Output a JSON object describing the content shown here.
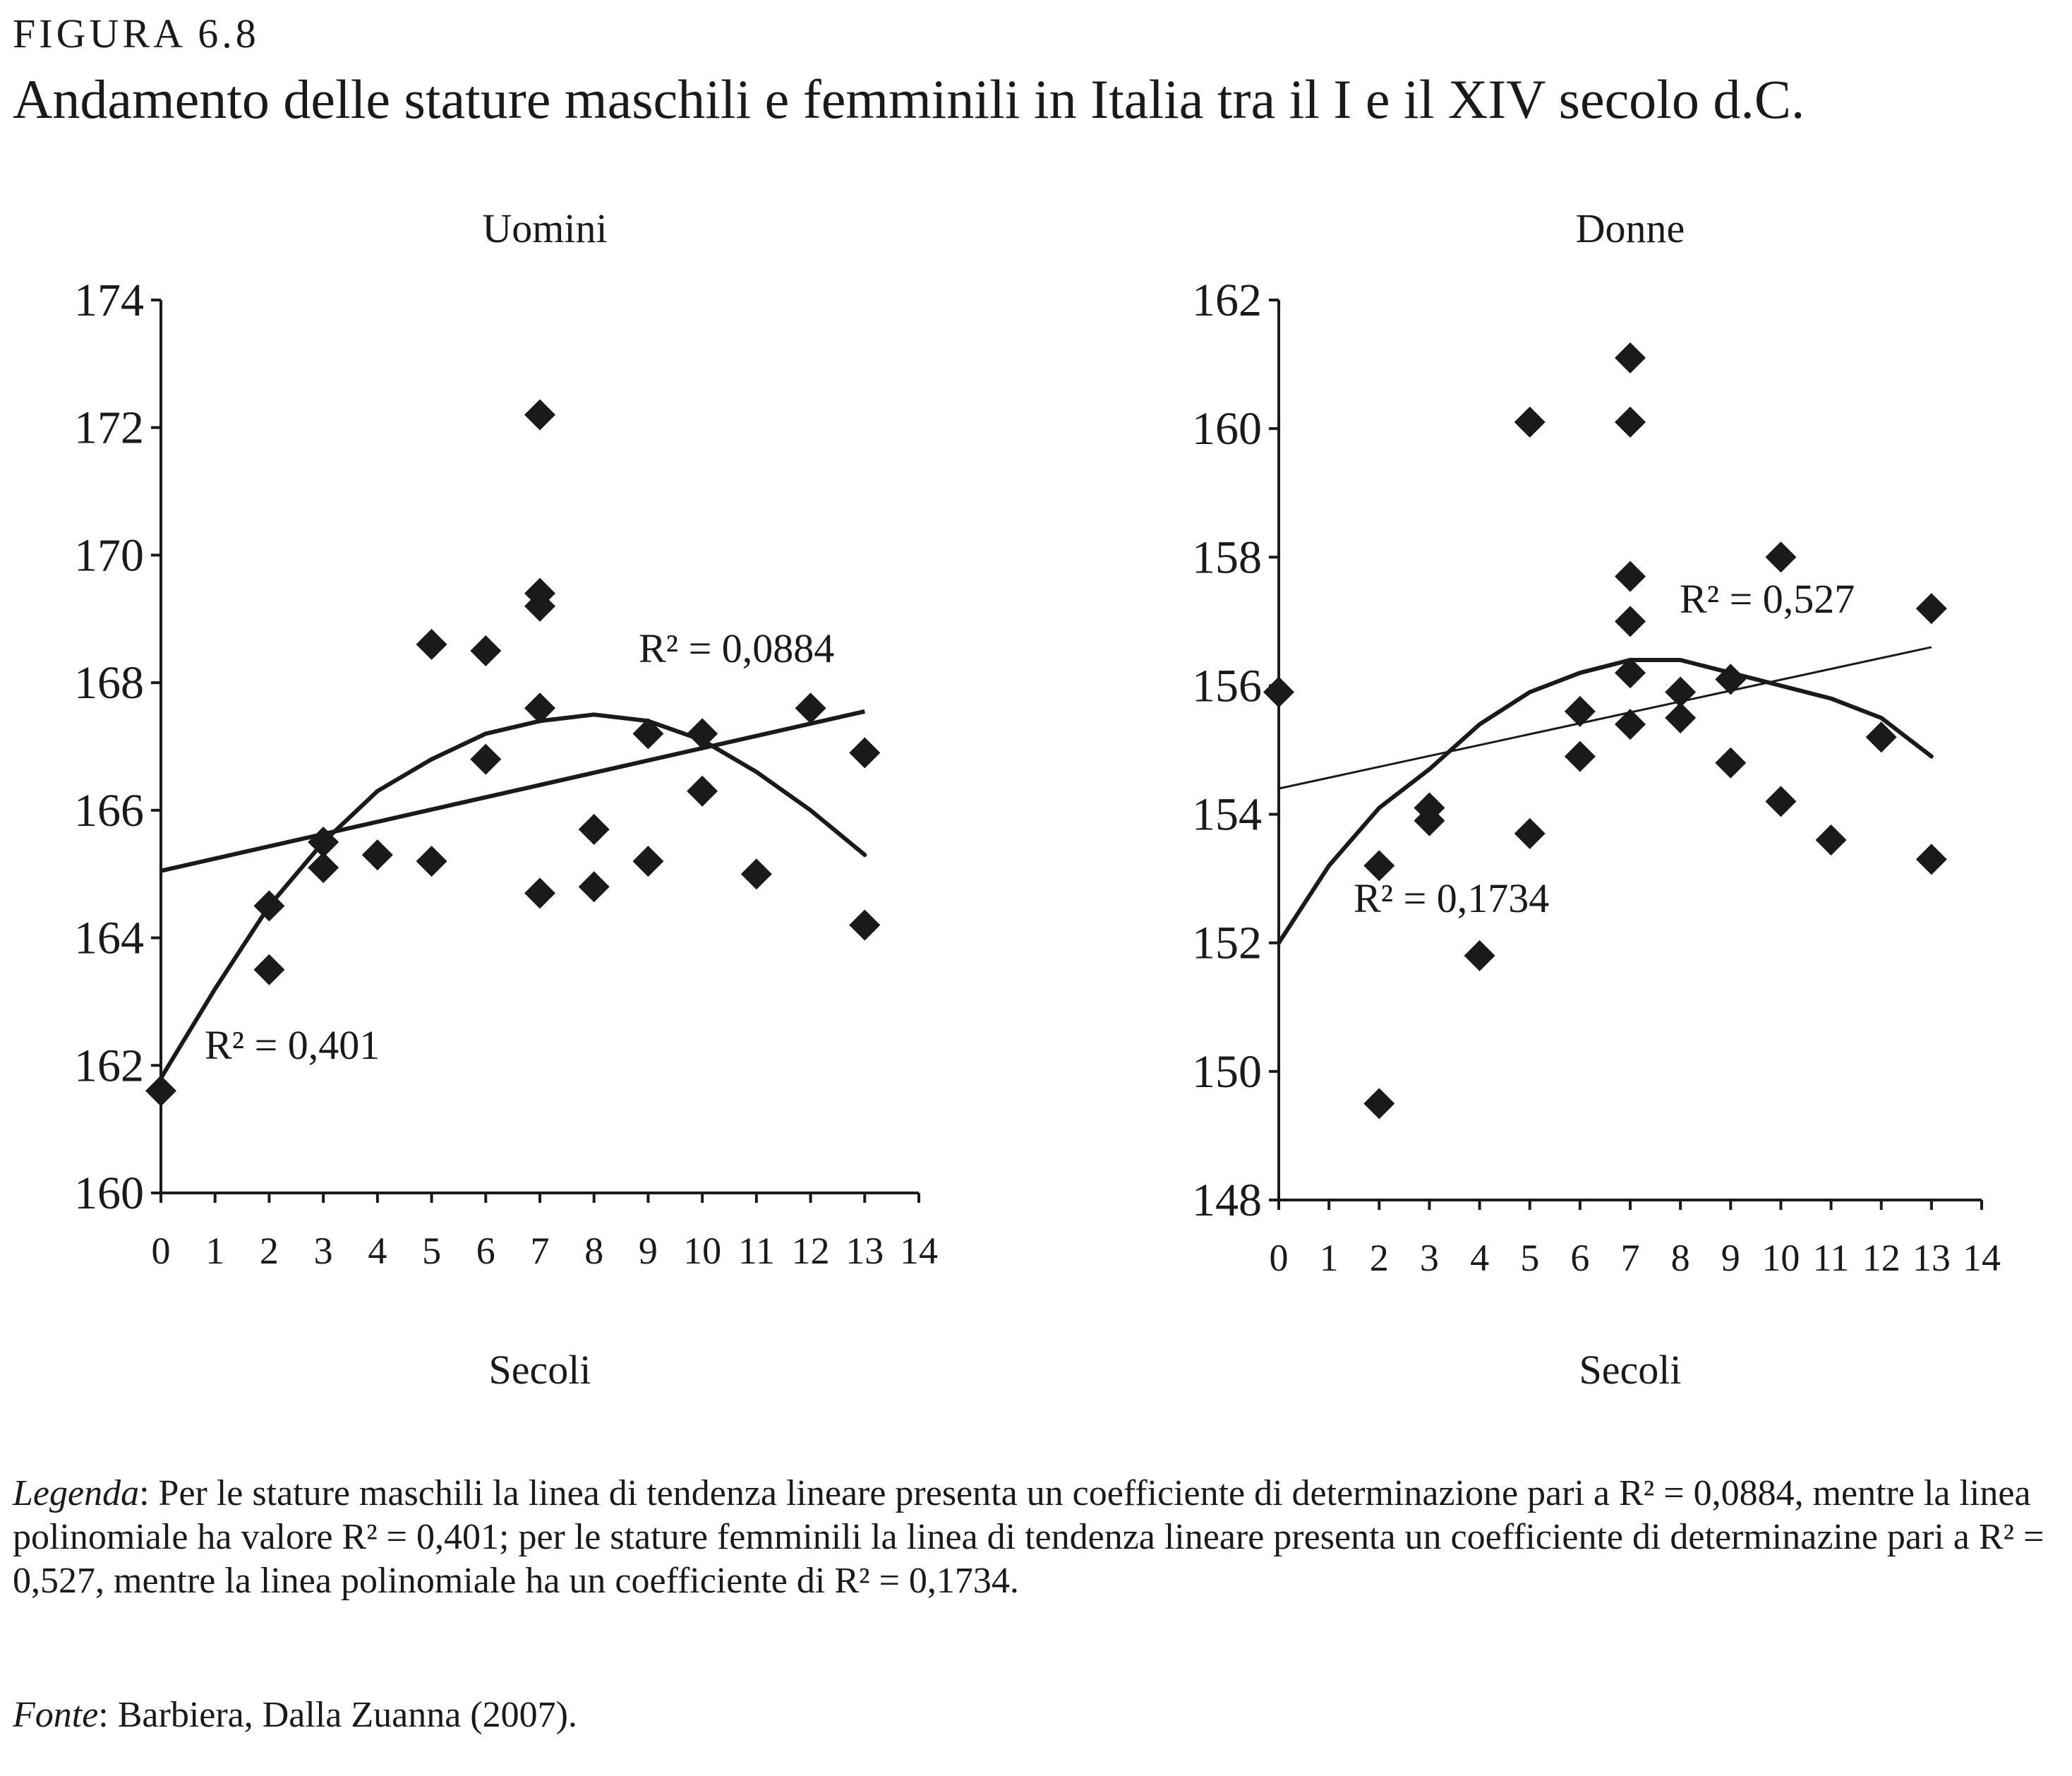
{
  "figure": {
    "label": "FIGURA 6.8",
    "title": "Andamento delle stature maschili e femminili in Italia tra il I e il XIV secolo d.C."
  },
  "legend": {
    "label": "Legenda",
    "text": ": Per le stature maschili la linea di tendenza lineare presenta un coefficiente di determinazione pari a R² = 0,0884, mentre la linea polinomiale ha valore R² = 0,401; per le stature femminili la linea di tendenza lineare presenta un coefficiente di determinazine pari a R² = 0,527, mentre la linea polinomiale ha un coefficiente di R² = 0,1734."
  },
  "source": {
    "label": "Fonte",
    "text": ": Barbiera, Dalla Zuanna (2007)."
  },
  "chart_data": [
    {
      "type": "scatter",
      "title": "Uomini",
      "xlabel": "Secoli",
      "ylabel": "",
      "xlim": [
        0,
        14
      ],
      "ylim": [
        160,
        174
      ],
      "xticks": [
        "0",
        "1",
        "2",
        "3",
        "4",
        "5",
        "6",
        "7",
        "8",
        "9",
        "10",
        "11",
        "12",
        "13",
        "14"
      ],
      "yticks": [
        "160",
        "162",
        "164",
        "166",
        "168",
        "170",
        "172",
        "174"
      ],
      "marker": "diamond",
      "color": "#1a1a1a",
      "points": [
        [
          0,
          161.6
        ],
        [
          2,
          164.5
        ],
        [
          2,
          163.5
        ],
        [
          3,
          165.5
        ],
        [
          3,
          165.1
        ],
        [
          4,
          165.3
        ],
        [
          5,
          168.6
        ],
        [
          5,
          165.2
        ],
        [
          6,
          168.5
        ],
        [
          6,
          166.8
        ],
        [
          7,
          172.2
        ],
        [
          7,
          169.4
        ],
        [
          7,
          169.2
        ],
        [
          7,
          167.6
        ],
        [
          7,
          164.7
        ],
        [
          8,
          165.7
        ],
        [
          8,
          164.8
        ],
        [
          9,
          167.2
        ],
        [
          9,
          165.2
        ],
        [
          10,
          167.2
        ],
        [
          10,
          166.3
        ],
        [
          11,
          165.0
        ],
        [
          12,
          167.6
        ],
        [
          13,
          166.9
        ],
        [
          13,
          164.2
        ]
      ],
      "trend_linear": {
        "x": [
          0,
          13
        ],
        "y": [
          165.05,
          167.55
        ],
        "label": "R² = 0,0884"
      },
      "trend_poly": {
        "x": [
          0,
          1,
          2,
          3,
          4,
          5,
          6,
          7,
          8,
          9,
          10,
          11,
          12,
          13
        ],
        "y": [
          161.8,
          163.2,
          164.5,
          165.5,
          166.3,
          166.8,
          167.2,
          167.4,
          167.5,
          167.4,
          167.1,
          166.6,
          166.0,
          165.3
        ],
        "label": "R² = 0,401"
      }
    },
    {
      "type": "scatter",
      "title": "Donne",
      "xlabel": "Secoli",
      "ylabel": "",
      "xlim": [
        0,
        14
      ],
      "ylim": [
        148,
        162
      ],
      "xticks": [
        "0",
        "1",
        "2",
        "3",
        "4",
        "5",
        "6",
        "7",
        "8",
        "9",
        "10",
        "11",
        "12",
        "13",
        "14"
      ],
      "yticks": [
        "148",
        "150",
        "152",
        "154",
        "156",
        "158",
        "160",
        "162"
      ],
      "marker": "diamond",
      "color": "#1a1a1a",
      "points": [
        [
          0,
          155.9
        ],
        [
          2,
          153.2
        ],
        [
          2,
          149.5
        ],
        [
          3,
          154.1
        ],
        [
          3,
          153.9
        ],
        [
          4,
          151.8
        ],
        [
          5,
          160.1
        ],
        [
          5,
          153.7
        ],
        [
          6,
          155.6
        ],
        [
          6,
          154.9
        ],
        [
          7,
          161.1
        ],
        [
          7,
          160.1
        ],
        [
          7,
          157.7
        ],
        [
          7,
          157.0
        ],
        [
          7,
          156.2
        ],
        [
          7,
          155.4
        ],
        [
          8,
          155.9
        ],
        [
          8,
          155.5
        ],
        [
          9,
          156.1
        ],
        [
          9,
          154.8
        ],
        [
          10,
          158.0
        ],
        [
          10,
          154.2
        ],
        [
          11,
          153.6
        ],
        [
          12,
          155.2
        ],
        [
          13,
          157.2
        ],
        [
          13,
          153.3
        ]
      ],
      "trend_linear": {
        "x": [
          0,
          13
        ],
        "y": [
          154.4,
          156.6
        ],
        "label": "R² = 0,527"
      },
      "trend_poly": {
        "x": [
          0,
          1,
          2,
          3,
          4,
          5,
          6,
          7,
          8,
          9,
          10,
          11,
          12,
          13
        ],
        "y": [
          152.0,
          153.2,
          154.1,
          154.7,
          155.4,
          155.9,
          156.2,
          156.4,
          156.4,
          156.2,
          156.0,
          155.8,
          155.5,
          154.9
        ],
        "label": "R² = 0,1734"
      }
    }
  ]
}
